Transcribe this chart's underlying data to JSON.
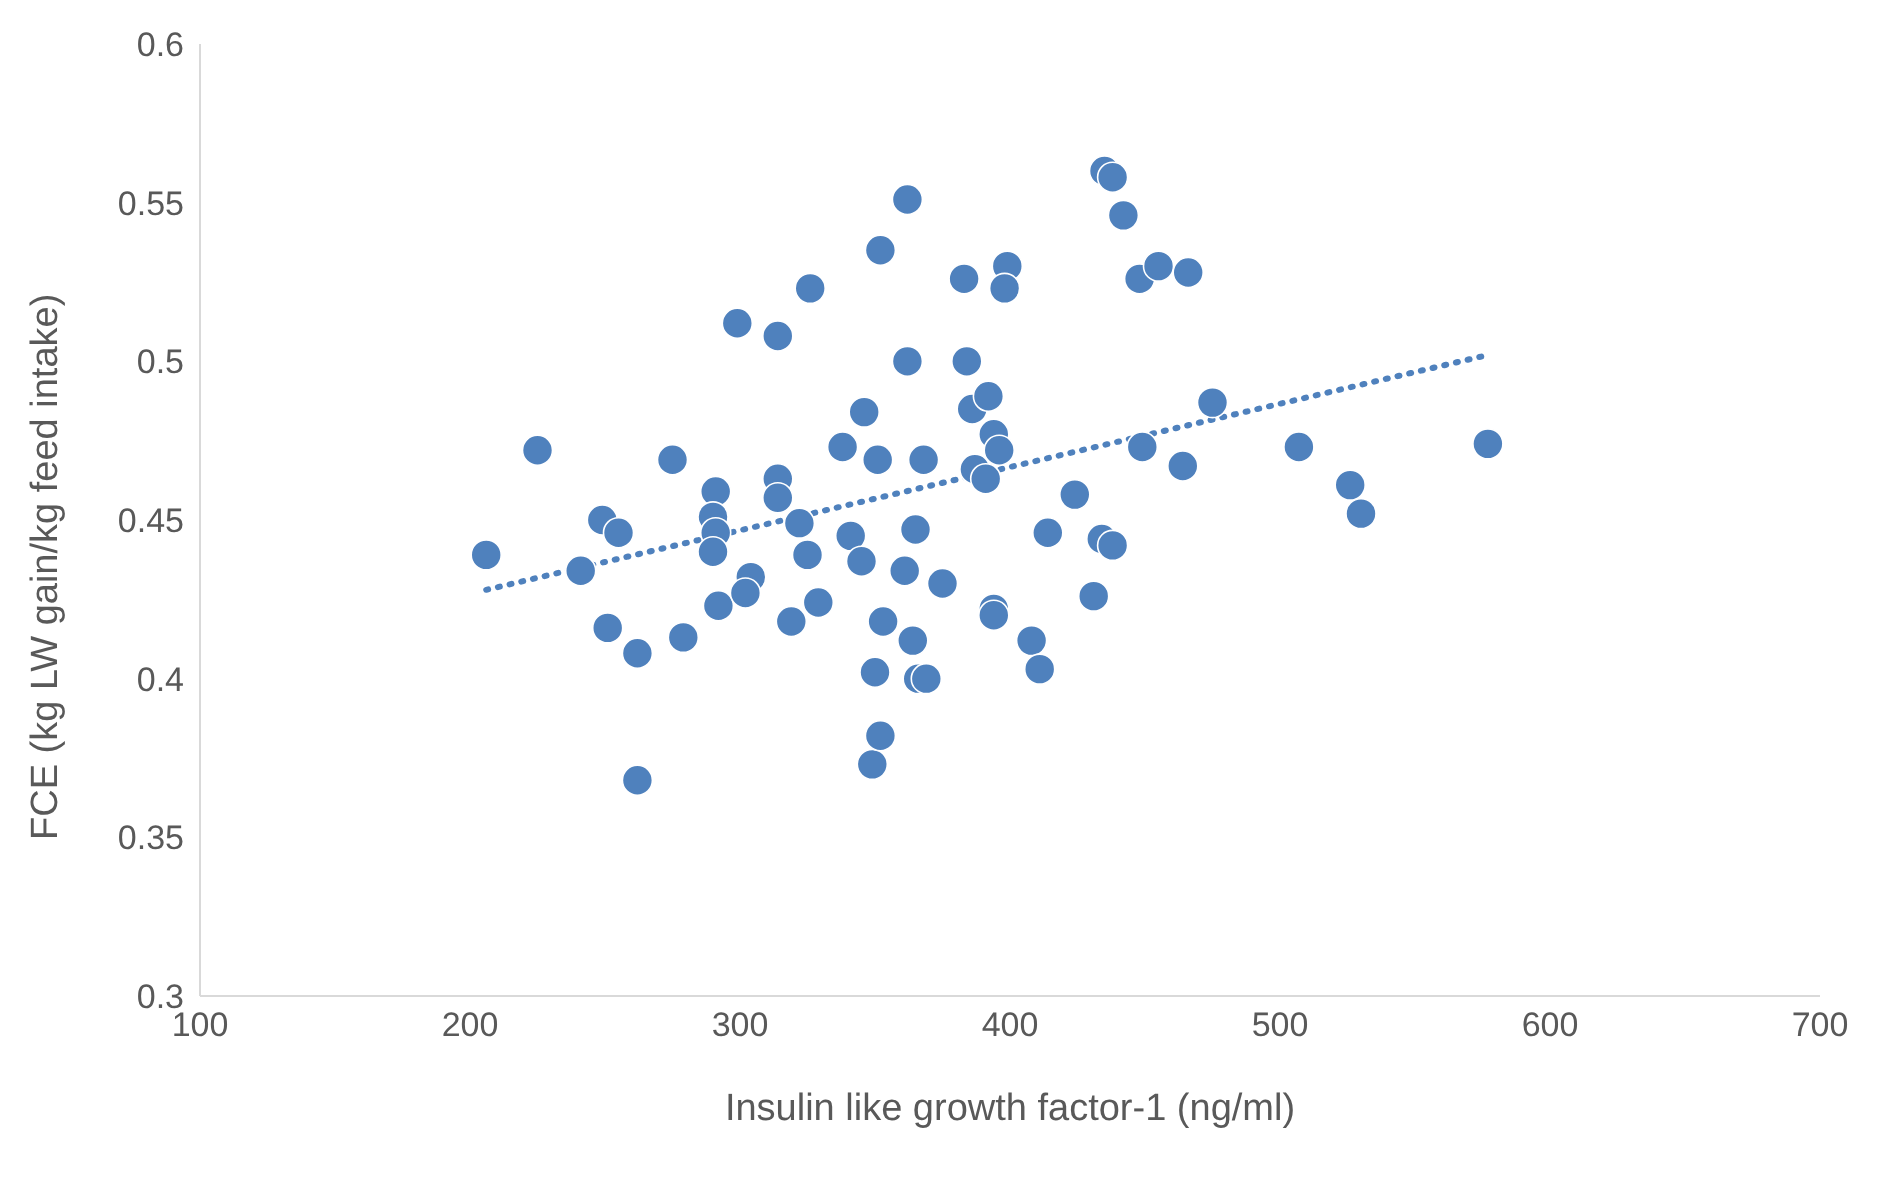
{
  "chart_data": {
    "type": "scatter",
    "xlabel": "Insulin like growth factor-1 (ng/ml)",
    "ylabel": "FCE  (kg LW gain/kg feed intake)",
    "xlim": [
      100,
      700
    ],
    "xticks": [
      100,
      200,
      300,
      400,
      500,
      600,
      700
    ],
    "ylim": [
      0.3,
      0.6
    ],
    "yticks": [
      0.3,
      0.35,
      0.4,
      0.45,
      0.5,
      0.55,
      0.6
    ],
    "grid": false,
    "legend": false,
    "marker": "circle",
    "series": [
      {
        "color": "#4f81bd",
        "x": [
          206,
          225,
          241,
          249,
          255,
          251,
          262,
          262,
          275,
          279,
          291,
          290,
          291,
          290,
          292,
          299,
          304,
          302,
          314,
          314,
          314,
          319,
          322,
          326,
          325,
          329,
          338,
          341,
          346,
          345,
          352,
          349,
          352,
          350,
          351,
          353,
          362,
          362,
          361,
          365,
          364,
          366,
          369,
          368,
          375,
          383,
          384,
          386,
          387,
          391,
          392,
          394,
          396,
          399,
          398,
          394,
          394,
          408,
          411,
          414,
          424,
          431,
          435,
          438,
          442,
          434,
          438,
          448,
          455,
          449,
          466,
          464,
          475,
          507,
          526,
          530,
          577
        ],
        "values": [
          0.439,
          0.472,
          0.434,
          0.45,
          0.446,
          0.416,
          0.408,
          0.368,
          0.469,
          0.413,
          0.459,
          0.451,
          0.446,
          0.44,
          0.423,
          0.512,
          0.432,
          0.427,
          0.508,
          0.463,
          0.457,
          0.418,
          0.449,
          0.523,
          0.439,
          0.424,
          0.473,
          0.445,
          0.484,
          0.437,
          0.535,
          0.373,
          0.382,
          0.402,
          0.469,
          0.418,
          0.551,
          0.5,
          0.434,
          0.447,
          0.412,
          0.4,
          0.4,
          0.469,
          0.43,
          0.526,
          0.5,
          0.485,
          0.466,
          0.463,
          0.489,
          0.477,
          0.472,
          0.53,
          0.523,
          0.422,
          0.42,
          0.412,
          0.403,
          0.446,
          0.458,
          0.426,
          0.56,
          0.558,
          0.546,
          0.444,
          0.442,
          0.526,
          0.53,
          0.473,
          0.528,
          0.467,
          0.487,
          0.473,
          0.461,
          0.452,
          0.474
        ]
      },
      {
        "type": "line",
        "color": "#4f81bd",
        "line_style": "dotted",
        "marker": "none",
        "x": [
          206,
          577
        ],
        "values": [
          0.428,
          0.502
        ]
      }
    ]
  }
}
